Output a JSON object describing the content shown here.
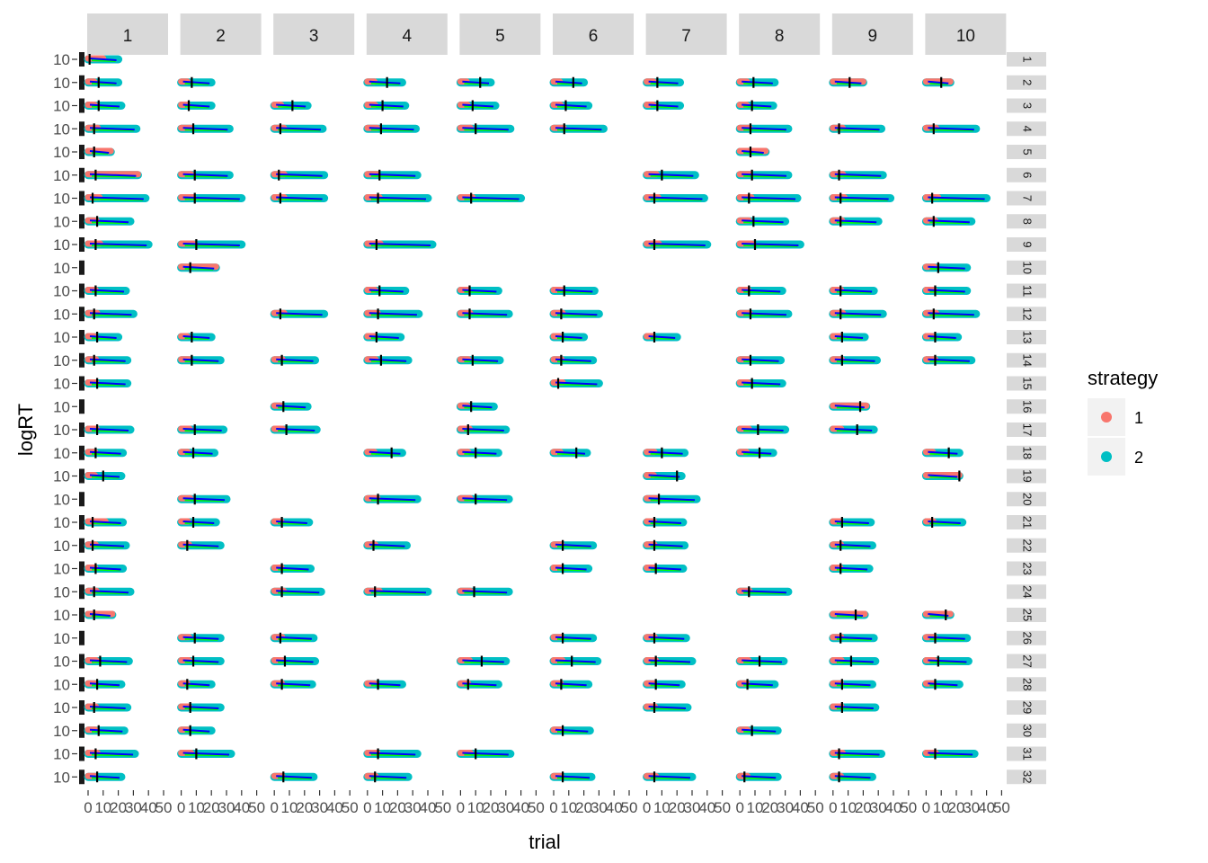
{
  "chart_data": {
    "type": "scatter",
    "xlabel": "trial",
    "ylabel": "logRT",
    "facet_columns": [
      "1",
      "2",
      "3",
      "4",
      "5",
      "6",
      "7",
      "8",
      "9",
      "10"
    ],
    "facet_rows": [
      "1",
      "2",
      "3",
      "4",
      "5",
      "6",
      "7",
      "8",
      "9",
      "10",
      "11",
      "12",
      "13",
      "14",
      "15",
      "16",
      "17",
      "18",
      "19",
      "20",
      "21",
      "22",
      "23",
      "24",
      "25",
      "26",
      "27",
      "28",
      "29",
      "30",
      "31",
      "32"
    ],
    "x_ticks": [
      "0",
      "10",
      "20",
      "30",
      "40",
      "50"
    ],
    "y_tick_label": "10",
    "xlim": [
      0,
      50
    ],
    "legend": {
      "title": "strategy",
      "placement": "right",
      "entries": [
        {
          "label": "1",
          "color": "#F8766D"
        },
        {
          "label": "2",
          "color": "#00BFC4"
        }
      ]
    },
    "colors": {
      "strategy_1": "#F8766D",
      "strategy_2": "#00BFC4",
      "fit_line": "#0000FF",
      "green_line": "#00FF00",
      "vline": "#000000",
      "strip_bg": "#D9D9D9"
    },
    "grid": false,
    "cells": [
      [
        [
          1,
          1,
          0,
          20,
          1,
          2
        ],
        [
          1,
          2,
          0,
          20,
          7,
          1
        ],
        [
          1,
          3,
          0,
          22,
          7,
          1
        ],
        [
          1,
          4,
          0,
          32,
          4,
          1
        ],
        [
          1,
          5,
          0,
          15,
          4,
          0
        ],
        [
          1,
          6,
          0,
          33,
          5,
          0
        ],
        [
          1,
          7,
          0,
          38,
          3,
          1
        ],
        [
          1,
          8,
          0,
          28,
          6,
          1
        ],
        [
          1,
          9,
          0,
          40,
          5,
          1
        ],
        [
          1,
          11,
          0,
          25,
          5,
          1
        ],
        [
          1,
          12,
          0,
          30,
          4,
          1
        ],
        [
          1,
          13,
          0,
          20,
          6,
          1
        ],
        [
          1,
          14,
          0,
          26,
          4,
          1
        ],
        [
          1,
          15,
          0,
          26,
          6,
          1
        ],
        [
          1,
          17,
          0,
          28,
          6,
          1
        ],
        [
          1,
          18,
          0,
          23,
          5,
          1
        ],
        [
          1,
          19,
          0,
          22,
          10,
          1
        ],
        [
          1,
          21,
          0,
          23,
          3,
          2
        ],
        [
          1,
          22,
          0,
          25,
          3,
          1
        ],
        [
          1,
          23,
          0,
          23,
          5,
          1
        ],
        [
          1,
          24,
          0,
          28,
          4,
          1
        ],
        [
          1,
          25,
          0,
          16,
          4,
          0
        ],
        [
          1,
          27,
          0,
          27,
          8,
          1
        ],
        [
          1,
          28,
          0,
          22,
          6,
          1
        ],
        [
          1,
          29,
          0,
          26,
          4,
          1
        ],
        [
          1,
          30,
          0,
          24,
          7,
          1
        ],
        [
          1,
          31,
          0,
          31,
          5,
          1
        ],
        [
          1,
          32,
          0,
          22,
          6,
          1
        ]
      ],
      [
        [
          2,
          2,
          0,
          20,
          7,
          1
        ],
        [
          2,
          3,
          0,
          20,
          5,
          1
        ],
        [
          2,
          4,
          0,
          32,
          8,
          1
        ],
        [
          2,
          6,
          0,
          32,
          9,
          1
        ],
        [
          2,
          7,
          0,
          40,
          9,
          1
        ],
        [
          2,
          9,
          0,
          40,
          10,
          1
        ],
        [
          2,
          10,
          0,
          23,
          6,
          0
        ],
        [
          2,
          13,
          0,
          20,
          7,
          1
        ],
        [
          2,
          14,
          0,
          26,
          7,
          1
        ],
        [
          2,
          17,
          0,
          28,
          9,
          1
        ],
        [
          2,
          18,
          0,
          22,
          8,
          1
        ],
        [
          2,
          20,
          0,
          30,
          9,
          1
        ],
        [
          2,
          21,
          0,
          23,
          8,
          1
        ],
        [
          2,
          22,
          0,
          26,
          4,
          1
        ],
        [
          2,
          26,
          0,
          26,
          9,
          1
        ],
        [
          2,
          27,
          0,
          26,
          8,
          1
        ],
        [
          2,
          28,
          0,
          20,
          4,
          1
        ],
        [
          2,
          29,
          0,
          26,
          6,
          1
        ],
        [
          2,
          30,
          0,
          20,
          6,
          1
        ],
        [
          2,
          31,
          0,
          33,
          10,
          1
        ]
      ],
      [
        [
          3,
          3,
          0,
          22,
          12,
          1
        ],
        [
          3,
          4,
          0,
          32,
          4,
          1
        ],
        [
          3,
          6,
          0,
          33,
          3,
          1
        ],
        [
          3,
          7,
          0,
          33,
          4,
          1
        ],
        [
          3,
          12,
          0,
          33,
          4,
          1
        ],
        [
          3,
          14,
          0,
          27,
          5,
          1
        ],
        [
          3,
          16,
          0,
          22,
          6,
          1
        ],
        [
          3,
          17,
          0,
          28,
          8,
          1
        ],
        [
          3,
          21,
          0,
          23,
          5,
          1
        ],
        [
          3,
          23,
          0,
          24,
          5,
          1
        ],
        [
          3,
          24,
          0,
          31,
          5,
          1
        ],
        [
          3,
          26,
          0,
          26,
          4,
          1
        ],
        [
          3,
          27,
          0,
          27,
          7,
          1
        ],
        [
          3,
          28,
          0,
          25,
          5,
          1
        ],
        [
          3,
          32,
          0,
          26,
          6,
          1
        ]
      ],
      [
        [
          4,
          2,
          0,
          23,
          13,
          1
        ],
        [
          4,
          3,
          0,
          25,
          10,
          1
        ],
        [
          4,
          4,
          0,
          32,
          9,
          1
        ],
        [
          4,
          6,
          0,
          33,
          8,
          1
        ],
        [
          4,
          7,
          0,
          40,
          7,
          1
        ],
        [
          4,
          9,
          0,
          43,
          6,
          1
        ],
        [
          4,
          11,
          0,
          25,
          8,
          1
        ],
        [
          4,
          12,
          0,
          34,
          7,
          1
        ],
        [
          4,
          13,
          0,
          22,
          6,
          1
        ],
        [
          4,
          14,
          0,
          27,
          9,
          1
        ],
        [
          4,
          18,
          0,
          23,
          16,
          1
        ],
        [
          4,
          20,
          0,
          33,
          7,
          1
        ],
        [
          4,
          22,
          0,
          26,
          4,
          1
        ],
        [
          4,
          24,
          0,
          40,
          5,
          1
        ],
        [
          4,
          28,
          0,
          23,
          7,
          1
        ],
        [
          4,
          31,
          0,
          33,
          7,
          1
        ],
        [
          4,
          32,
          0,
          27,
          5,
          1
        ]
      ],
      [
        [
          5,
          2,
          0,
          20,
          13,
          1
        ],
        [
          5,
          3,
          0,
          23,
          8,
          1
        ],
        [
          5,
          4,
          0,
          33,
          10,
          1
        ],
        [
          5,
          7,
          0,
          40,
          7,
          1
        ],
        [
          5,
          11,
          0,
          25,
          6,
          1
        ],
        [
          5,
          12,
          0,
          32,
          6,
          1
        ],
        [
          5,
          14,
          0,
          26,
          8,
          1
        ],
        [
          5,
          16,
          0,
          22,
          7,
          1
        ],
        [
          5,
          17,
          0,
          30,
          5,
          1
        ],
        [
          5,
          18,
          0,
          25,
          10,
          1
        ],
        [
          5,
          20,
          0,
          32,
          10,
          1
        ],
        [
          5,
          24,
          0,
          32,
          9,
          1
        ],
        [
          5,
          27,
          0,
          30,
          14,
          1
        ],
        [
          5,
          28,
          0,
          25,
          5,
          1
        ],
        [
          5,
          31,
          0,
          33,
          10,
          1
        ]
      ],
      [
        [
          6,
          2,
          0,
          20,
          13,
          1
        ],
        [
          6,
          3,
          0,
          23,
          8,
          1
        ],
        [
          6,
          4,
          0,
          33,
          7,
          1
        ],
        [
          6,
          11,
          0,
          27,
          7,
          1
        ],
        [
          6,
          12,
          0,
          30,
          5,
          1
        ],
        [
          6,
          13,
          0,
          20,
          6,
          1
        ],
        [
          6,
          14,
          0,
          26,
          5,
          1
        ],
        [
          6,
          15,
          0,
          30,
          3,
          1
        ],
        [
          6,
          18,
          0,
          22,
          15,
          1
        ],
        [
          6,
          22,
          0,
          26,
          6,
          1
        ],
        [
          6,
          23,
          0,
          23,
          6,
          1
        ],
        [
          6,
          26,
          0,
          26,
          6,
          1
        ],
        [
          6,
          27,
          0,
          29,
          12,
          1
        ],
        [
          6,
          28,
          0,
          23,
          5,
          1
        ],
        [
          6,
          30,
          0,
          24,
          6,
          1
        ],
        [
          6,
          32,
          0,
          25,
          6,
          1
        ]
      ],
      [
        [
          7,
          2,
          0,
          22,
          7,
          1
        ],
        [
          7,
          3,
          0,
          22,
          7,
          1
        ],
        [
          7,
          6,
          0,
          32,
          10,
          1
        ],
        [
          7,
          7,
          0,
          38,
          5,
          1
        ],
        [
          7,
          9,
          0,
          40,
          5,
          1
        ],
        [
          7,
          13,
          0,
          20,
          5,
          1
        ],
        [
          7,
          18,
          0,
          25,
          10,
          1
        ],
        [
          7,
          19,
          0,
          23,
          20,
          1
        ],
        [
          7,
          20,
          0,
          33,
          8,
          1
        ],
        [
          7,
          21,
          0,
          24,
          5,
          1
        ],
        [
          7,
          22,
          0,
          25,
          5,
          1
        ],
        [
          7,
          23,
          0,
          24,
          6,
          1
        ],
        [
          7,
          26,
          0,
          26,
          5,
          1
        ],
        [
          7,
          27,
          0,
          30,
          6,
          1
        ],
        [
          7,
          28,
          0,
          23,
          6,
          1
        ],
        [
          7,
          29,
          0,
          27,
          5,
          1
        ],
        [
          7,
          32,
          0,
          30,
          5,
          1
        ]
      ],
      [
        [
          8,
          2,
          0,
          23,
          9,
          1
        ],
        [
          8,
          3,
          0,
          22,
          8,
          1
        ],
        [
          8,
          4,
          0,
          32,
          7,
          1
        ],
        [
          8,
          5,
          0,
          17,
          7,
          0
        ],
        [
          8,
          6,
          0,
          32,
          8,
          1
        ],
        [
          8,
          7,
          0,
          38,
          6,
          1
        ],
        [
          8,
          8,
          0,
          30,
          9,
          1
        ],
        [
          8,
          9,
          0,
          40,
          10,
          1
        ],
        [
          8,
          11,
          0,
          28,
          6,
          1
        ],
        [
          8,
          12,
          0,
          32,
          7,
          1
        ],
        [
          8,
          14,
          0,
          27,
          7,
          1
        ],
        [
          8,
          15,
          0,
          28,
          8,
          1
        ],
        [
          8,
          17,
          0,
          30,
          12,
          1
        ],
        [
          8,
          18,
          0,
          22,
          13,
          1
        ],
        [
          8,
          24,
          0,
          32,
          6,
          1
        ],
        [
          8,
          27,
          0,
          29,
          13,
          1
        ],
        [
          8,
          28,
          0,
          23,
          5,
          1
        ],
        [
          8,
          30,
          0,
          25,
          8,
          1
        ],
        [
          8,
          32,
          0,
          25,
          3,
          1
        ]
      ],
      [
        [
          9,
          2,
          0,
          20,
          11,
          0
        ],
        [
          9,
          4,
          0,
          32,
          4,
          1
        ],
        [
          9,
          6,
          0,
          33,
          4,
          1
        ],
        [
          9,
          7,
          0,
          38,
          5,
          1
        ],
        [
          9,
          8,
          0,
          30,
          5,
          1
        ],
        [
          9,
          11,
          0,
          27,
          5,
          1
        ],
        [
          9,
          12,
          0,
          33,
          5,
          1
        ],
        [
          9,
          13,
          0,
          21,
          6,
          1
        ],
        [
          9,
          14,
          0,
          29,
          6,
          1
        ],
        [
          9,
          16,
          0,
          22,
          18,
          0
        ],
        [
          9,
          17,
          0,
          27,
          16,
          1
        ],
        [
          9,
          21,
          0,
          25,
          6,
          1
        ],
        [
          9,
          22,
          0,
          26,
          5,
          1
        ],
        [
          9,
          23,
          0,
          24,
          5,
          1
        ],
        [
          9,
          25,
          0,
          21,
          15,
          0
        ],
        [
          9,
          26,
          0,
          27,
          5,
          1
        ],
        [
          9,
          27,
          0,
          28,
          12,
          1
        ],
        [
          9,
          28,
          0,
          26,
          6,
          1
        ],
        [
          9,
          29,
          0,
          28,
          6,
          1
        ],
        [
          9,
          31,
          0,
          32,
          4,
          1
        ],
        [
          9,
          32,
          0,
          26,
          4,
          1
        ]
      ],
      [
        [
          10,
          2,
          0,
          16,
          10,
          0
        ],
        [
          10,
          4,
          0,
          33,
          5,
          1
        ],
        [
          10,
          7,
          0,
          40,
          4,
          1
        ],
        [
          10,
          8,
          0,
          30,
          5,
          1
        ],
        [
          10,
          10,
          0,
          27,
          8,
          1
        ],
        [
          10,
          11,
          0,
          27,
          6,
          1
        ],
        [
          10,
          12,
          0,
          33,
          5,
          1
        ],
        [
          10,
          13,
          0,
          21,
          6,
          1
        ],
        [
          10,
          14,
          0,
          30,
          6,
          1
        ],
        [
          10,
          18,
          0,
          22,
          15,
          1
        ],
        [
          10,
          19,
          0,
          22,
          22,
          0
        ],
        [
          10,
          21,
          0,
          24,
          4,
          1
        ],
        [
          10,
          25,
          0,
          16,
          13,
          0
        ],
        [
          10,
          26,
          0,
          27,
          6,
          1
        ],
        [
          10,
          27,
          0,
          28,
          8,
          1
        ],
        [
          10,
          28,
          0,
          22,
          6,
          1
        ],
        [
          10,
          31,
          0,
          32,
          6,
          1
        ]
      ]
    ]
  }
}
